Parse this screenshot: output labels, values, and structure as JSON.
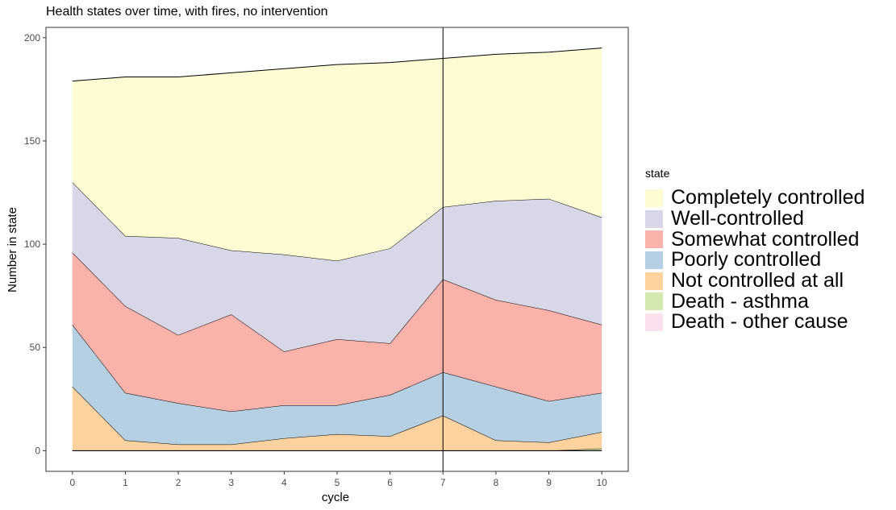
{
  "chart_data": {
    "type": "area",
    "title": "Health states over time, with fires, no intervention",
    "xlabel": "cycle",
    "ylabel": "Number in state",
    "xlim": [
      -0.5,
      10.5
    ],
    "ylim": [
      -10,
      205
    ],
    "x": [
      0,
      1,
      2,
      3,
      4,
      5,
      6,
      7,
      8,
      9,
      10
    ],
    "x_ticks": [
      0,
      1,
      2,
      3,
      4,
      5,
      6,
      7,
      8,
      9,
      10
    ],
    "y_ticks": [
      0,
      50,
      100,
      150,
      200
    ],
    "vline_x": 7,
    "grid": false,
    "legend_title": "state",
    "legend_position": "right",
    "series": [
      {
        "name": "Death - other cause",
        "color": "#fbe1ee",
        "values": [
          0,
          0,
          0,
          0,
          0,
          0,
          0,
          0,
          0,
          0,
          0
        ]
      },
      {
        "name": "Death - asthma",
        "color": "#d3eaaf",
        "values": [
          0,
          0,
          0,
          0,
          0,
          0,
          0,
          0,
          0,
          0,
          1
        ]
      },
      {
        "name": "Not controlled at all",
        "color": "#fed29f",
        "values": [
          31,
          5,
          3,
          3,
          6,
          8,
          7,
          17,
          5,
          4,
          8
        ]
      },
      {
        "name": "Poorly controlled",
        "color": "#b4d0e2",
        "values": [
          30,
          23,
          20,
          16,
          16,
          14,
          20,
          21,
          26,
          20,
          19
        ]
      },
      {
        "name": "Somewhat controlled",
        "color": "#fbb2aa",
        "values": [
          35,
          42,
          33,
          47,
          26,
          32,
          25,
          45,
          42,
          44,
          33
        ]
      },
      {
        "name": "Well-controlled",
        "color": "#d8d7e8",
        "values": [
          34,
          34,
          47,
          31,
          47,
          38,
          46,
          35,
          48,
          54,
          52
        ]
      },
      {
        "name": "Completely controlled",
        "color": "#fefcd3",
        "values": [
          49,
          77,
          78,
          86,
          90,
          95,
          90,
          72,
          71,
          71,
          82
        ]
      }
    ],
    "legend_order": [
      "Completely controlled",
      "Well-controlled",
      "Somewhat controlled",
      "Poorly controlled",
      "Not controlled at all",
      "Death - asthma",
      "Death - other cause"
    ]
  }
}
